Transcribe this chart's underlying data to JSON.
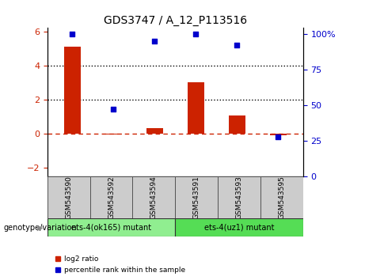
{
  "title": "GDS3747 / A_12_P113516",
  "categories": [
    "GSM543590",
    "GSM543592",
    "GSM543594",
    "GSM543591",
    "GSM543593",
    "GSM543595"
  ],
  "log2_ratio": [
    5.1,
    -0.05,
    0.35,
    3.0,
    1.05,
    -0.07
  ],
  "percentile_rank": [
    100,
    47,
    95,
    100,
    92,
    28
  ],
  "bar_color": "#cc2200",
  "dot_color": "#0000cc",
  "ylim_left": [
    -2.5,
    6.2
  ],
  "ylim_right": [
    0,
    104
  ],
  "yticks_left": [
    -2,
    0,
    2,
    4,
    6
  ],
  "yticks_right": [
    0,
    25,
    50,
    75,
    100
  ],
  "group1_label": "ets-4(ok165) mutant",
  "group2_label": "ets-4(uz1) mutant",
  "group1_color": "#90ee90",
  "group2_color": "#55dd55",
  "group_label_prefix": "genotype/variation",
  "legend_bar_label": "log2 ratio",
  "legend_dot_label": "percentile rank within the sample",
  "dotted_line_color": "#000000",
  "zero_line_color": "#cc2200",
  "bg_color": "#ffffff",
  "tick_label_color_left": "#cc2200",
  "tick_label_color_right": "#0000cc",
  "xlim": [
    -0.6,
    5.6
  ]
}
